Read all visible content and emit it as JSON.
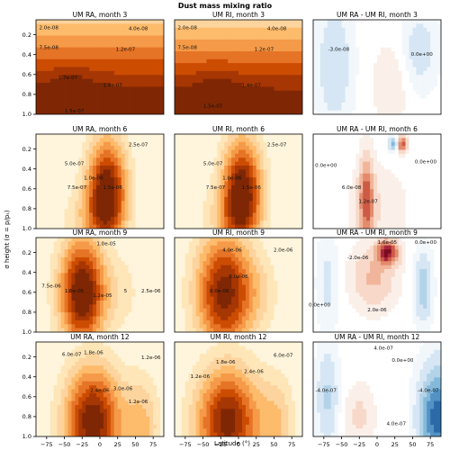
{
  "figure": {
    "title": "Dust mass mixing ratio",
    "ylabel": "σ height (σ = p/pₛ)",
    "xlabel": "Latitude (°)"
  },
  "colors": {
    "seq": [
      "#fff5dc",
      "#fee6b8",
      "#fdd49e",
      "#fdbb6c",
      "#f59a48",
      "#e67426",
      "#cc4c02",
      "#a63603",
      "#7f2704"
    ],
    "div_neg": [
      "#f2f7fb",
      "#d6e6f4",
      "#b3d3e8",
      "#85b9da",
      "#5293c4",
      "#2b6aa8",
      "#0b4a8a"
    ],
    "div_pos": [
      "#fbefe9",
      "#f8d9c9",
      "#f0b59a",
      "#e48a6d",
      "#cc5a45",
      "#a8243b",
      "#7a0c1f"
    ]
  },
  "chart_data": [
    {
      "type": "contour",
      "title": "UM RA, month 3",
      "row": 0,
      "col": 0,
      "kind": "seq",
      "x": [
        -90,
        90
      ],
      "y_ticks": [
        0.2,
        0.4,
        0.6,
        0.8,
        1.0
      ],
      "ylim": [
        0.05,
        1.0
      ],
      "contour_labels": [
        "2.0e-08",
        "4.0e-08",
        "7.5e-08",
        "1.2e-07",
        "1.4e-07",
        "1.7e-07",
        "1.5e-07"
      ]
    },
    {
      "type": "contour",
      "title": "UM RI, month 3",
      "row": 0,
      "col": 1,
      "kind": "seq",
      "contour_labels": [
        "2.0e-08",
        "4.0e-08",
        "7.5e-08",
        "1.2e-07",
        "1.4e-07",
        "1.5e-07"
      ]
    },
    {
      "type": "contour",
      "title": "UM RA - UM RI, month 3",
      "row": 0,
      "col": 2,
      "kind": "div",
      "contour_labels": [
        "-3.0e-08",
        "0.0e+00"
      ]
    },
    {
      "type": "contour",
      "title": "UM RA, month 6",
      "row": 1,
      "col": 0,
      "kind": "seq",
      "contour_labels": [
        "5.0e-07",
        "7.5e-07",
        "1.0e-06",
        "1.5e-06",
        "2.5e-07"
      ]
    },
    {
      "type": "contour",
      "title": "UM RI, month 6",
      "row": 1,
      "col": 1,
      "kind": "seq",
      "contour_labels": [
        "5.0e-07",
        "7.5e-07",
        "1.0e-06",
        "1.5e-06",
        "2.5e-07"
      ]
    },
    {
      "type": "contour",
      "title": "UM RA - UM RI, month 6",
      "row": 1,
      "col": 2,
      "kind": "div",
      "contour_labels": [
        "0.0e+00",
        "6.0e-08",
        "1.2e-07",
        "0.0e+00"
      ]
    },
    {
      "type": "contour",
      "title": "UM RA, month 9",
      "row": 2,
      "col": 0,
      "kind": "seq",
      "contour_labels": [
        "1.0e-05",
        "7.5e-06",
        "1.0e-05",
        "1.2e-05",
        "2.5e-06",
        "5"
      ]
    },
    {
      "type": "contour",
      "title": "UM RI, month 9",
      "row": 2,
      "col": 1,
      "kind": "seq",
      "contour_labels": [
        "4.0e-06",
        "2.0e-06",
        "6.0e-06",
        "8.0e-06"
      ]
    },
    {
      "type": "contour",
      "title": "UM RA - UM RI, month 9",
      "row": 2,
      "col": 2,
      "kind": "div",
      "contour_labels": [
        "-2.0e-06",
        "1.6e-05",
        "0.0e+00",
        "2.0e-06",
        "0.0e+00"
      ]
    },
    {
      "type": "contour",
      "title": "UM RA, month 12",
      "row": 3,
      "col": 0,
      "kind": "seq",
      "contour_labels": [
        "6.0e-07",
        "1.8e-06",
        "1.2e-06",
        "2.4e-06",
        "3.0e-06",
        "1.2e-06"
      ]
    },
    {
      "type": "contour",
      "title": "UM RI, month 12",
      "row": 3,
      "col": 1,
      "kind": "seq",
      "contour_labels": [
        "1.2e-06",
        "1.8e-06",
        "2.4e-06",
        "6.0e-07"
      ]
    },
    {
      "type": "contour",
      "title": "UM RA - UM RI, month 12",
      "row": 3,
      "col": 2,
      "kind": "div",
      "contour_labels": [
        "4.0e-07",
        "0.0e+00",
        "-4.0e-07",
        "4.0e-07",
        "-4.0e-07"
      ]
    }
  ],
  "axes": {
    "x_ticks": [
      -75,
      -50,
      -25,
      0,
      25,
      50,
      75
    ],
    "x_tick_labels": [
      "−75",
      "−50",
      "−25",
      "0",
      "25",
      "50",
      "75"
    ],
    "y_ticks": [
      0.2,
      0.4,
      0.6,
      0.8,
      1.0
    ],
    "y_tick_labels": [
      "0.2",
      "0.4",
      "0.6",
      "0.8",
      "1.0"
    ]
  }
}
